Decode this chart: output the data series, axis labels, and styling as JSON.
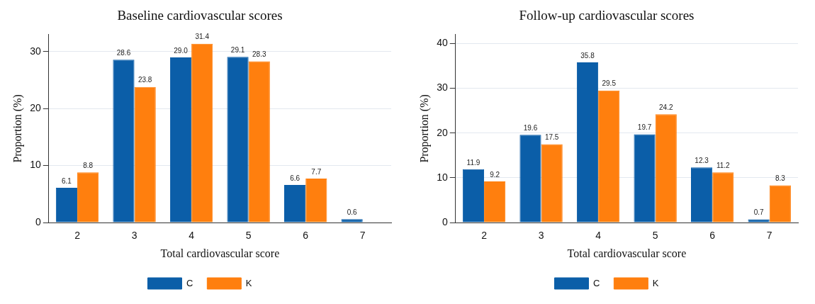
{
  "chart_data": [
    {
      "type": "bar",
      "title": "Baseline cardiovascular scores",
      "xlabel": "Total cardiovascular score",
      "ylabel": "Proportion (%)",
      "categories": [
        "2",
        "3",
        "4",
        "5",
        "6",
        "7"
      ],
      "series": [
        {
          "name": "C",
          "color": "#0b5ea8",
          "values": [
            6.1,
            28.6,
            29.0,
            29.1,
            6.6,
            0.6
          ],
          "value_labels": [
            "6.1",
            "28.6",
            "29.0",
            "29.1",
            "6.6",
            "0.6"
          ]
        },
        {
          "name": "K",
          "color": "#ff7f0e",
          "values": [
            8.8,
            23.8,
            31.4,
            28.3,
            7.7,
            null
          ],
          "value_labels": [
            "8.8",
            "23.8",
            "31.4",
            "28.3",
            "7.7",
            null
          ]
        }
      ],
      "ylim": [
        0,
        33
      ],
      "yticks": [
        0,
        10,
        20,
        30
      ],
      "grid": "y",
      "legend": "bottom"
    },
    {
      "type": "bar",
      "title": "Follow-up cardiovascular scores",
      "xlabel": "Total cardiovascular score",
      "ylabel": "Proportion (%)",
      "categories": [
        "2",
        "3",
        "4",
        "5",
        "6",
        "7"
      ],
      "series": [
        {
          "name": "C",
          "color": "#0b5ea8",
          "values": [
            11.9,
            19.6,
            35.8,
            19.7,
            12.3,
            0.7
          ],
          "value_labels": [
            "11.9",
            "19.6",
            "35.8",
            "19.7",
            "12.3",
            "0.7"
          ]
        },
        {
          "name": "K",
          "color": "#ff7f0e",
          "values": [
            9.2,
            17.5,
            29.5,
            24.2,
            11.2,
            8.3
          ],
          "value_labels": [
            "9.2",
            "17.5",
            "29.5",
            "24.2",
            "11.2",
            "8.3"
          ]
        }
      ],
      "ylim": [
        0,
        42
      ],
      "yticks": [
        0,
        10,
        20,
        30,
        40
      ],
      "grid": "y",
      "legend": "bottom"
    }
  ]
}
